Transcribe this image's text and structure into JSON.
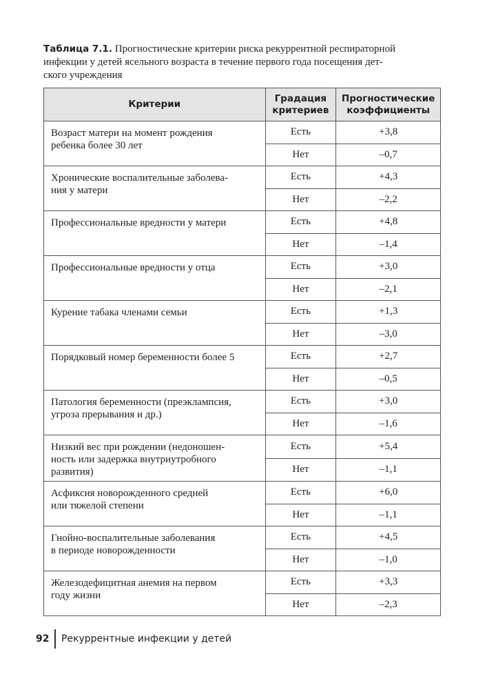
{
  "caption": {
    "label": "Таблица 7.1.",
    "lines": [
      "Прогностические критерии риска рекуррентной респираторной",
      "инфекции у детей ясельного возраста в течение первого года посещения дет-",
      "ского учреждения"
    ]
  },
  "table": {
    "header": [
      "Критерии",
      "Градация критериев",
      "Прогностические коэффициенты"
    ],
    "rows": [
      {
        "criterion": [
          "Возраст матери на момент рождения",
          "ребенка более 30 лет"
        ],
        "grades": [
          {
            "grade": "Есть",
            "coefficient": "+3,8"
          },
          {
            "grade": "Нет",
            "coefficient": "–0,7"
          }
        ]
      },
      {
        "criterion": [
          "Хронические воспалительные заболева-",
          "ния у матери"
        ],
        "grades": [
          {
            "grade": "Есть",
            "coefficient": "+4,3"
          },
          {
            "grade": "Нет",
            "coefficient": "–2,2"
          }
        ]
      },
      {
        "criterion": [
          "Профессиональные вредности у матери"
        ],
        "grades": [
          {
            "grade": "Есть",
            "coefficient": "+4,8"
          },
          {
            "grade": "Нет",
            "coefficient": "–1,4"
          }
        ]
      },
      {
        "criterion": [
          "Профессиональные вредности у отца"
        ],
        "grades": [
          {
            "grade": "Есть",
            "coefficient": "+3,0"
          },
          {
            "grade": "Нет",
            "coefficient": "–2,1"
          }
        ]
      },
      {
        "criterion": [
          "Курение табака членами семьи"
        ],
        "grades": [
          {
            "grade": "Есть",
            "coefficient": "+1,3"
          },
          {
            "grade": "Нет",
            "coefficient": "–3,0"
          }
        ]
      },
      {
        "criterion": [
          "Порядковый номер беременности более 5"
        ],
        "grades": [
          {
            "grade": "Есть",
            "coefficient": "+2,7"
          },
          {
            "grade": "Нет",
            "coefficient": "–0,5"
          }
        ]
      },
      {
        "criterion": [
          "Патология беременности (преэклампсия,",
          "угроза прерывания и др.)"
        ],
        "grades": [
          {
            "grade": "Есть",
            "coefficient": "+3,0"
          },
          {
            "grade": "Нет",
            "coefficient": "–1,6"
          }
        ]
      },
      {
        "criterion": [
          "Низкий вес при рождении (недоношен-",
          "ность или задержка внутриутробного",
          "развития)"
        ],
        "grades": [
          {
            "grade": "Есть",
            "coefficient": "+5,4"
          },
          {
            "grade": "Нет",
            "coefficient": "–1,1"
          }
        ]
      },
      {
        "criterion": [
          "Асфиксия новорожденного средней",
          "или тяжелой степени"
        ],
        "grades": [
          {
            "grade": "Есть",
            "coefficient": "+6,0"
          },
          {
            "grade": "Нет",
            "coefficient": "–1,1"
          }
        ]
      },
      {
        "criterion": [
          "Гнойно-воспалительные заболевания",
          "в периоде новорожденности"
        ],
        "grades": [
          {
            "grade": "Есть",
            "coefficient": "+4,5"
          },
          {
            "grade": "Нет",
            "coefficient": "–1,0"
          }
        ]
      },
      {
        "criterion": [
          "Железодефицитная анемия на первом",
          "году жизни"
        ],
        "grades": [
          {
            "grade": "Есть",
            "coefficient": "+3,3"
          },
          {
            "grade": "Нет",
            "coefficient": "–2,3"
          }
        ]
      }
    ]
  },
  "footer": {
    "page_number": "92",
    "running_title": "Рекуррентные инфекции у детей"
  }
}
